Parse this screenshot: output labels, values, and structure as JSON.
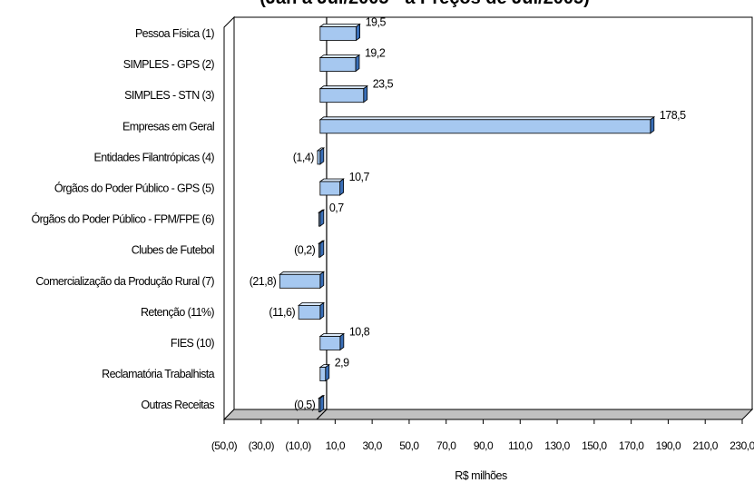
{
  "chart_data": {
    "type": "bar",
    "orientation": "horizontal",
    "title": "(Jan a Jul/2005 - a Preços de Jul/2005)",
    "xlabel": "R$ milhões",
    "ylabel": "",
    "xlim": [
      -50,
      230
    ],
    "x_ticks": [
      -50,
      -30,
      -10,
      10,
      30,
      50,
      70,
      90,
      110,
      130,
      150,
      170,
      190,
      210,
      230
    ],
    "x_tick_labels": [
      "(50,0)",
      "(30,0)",
      "(10,0)",
      "10,0",
      "30,0",
      "50,0",
      "70,0",
      "90,0",
      "110,0",
      "130,0",
      "150,0",
      "170,0",
      "190,0",
      "210,0",
      "230,0"
    ],
    "categories": [
      "Pessoa Física (1)",
      "SIMPLES - GPS (2)",
      "SIMPLES - STN (3)",
      "Empresas em Geral",
      "Entidades Filantrópicas (4)",
      "Órgãos do Poder Público - GPS (5)",
      "Órgãos do Poder Público - FPM/FPE (6)",
      "Clubes de Futebol",
      "Comercialização da Produção Rural (7)",
      "Retenção (11%)",
      "FIES (10)",
      "Reclamatória Trabalhista",
      "Outras Receitas"
    ],
    "values": [
      19.5,
      19.2,
      23.5,
      178.5,
      -1.4,
      10.7,
      0.7,
      -0.2,
      -21.8,
      -11.6,
      10.8,
      2.9,
      -0.5
    ],
    "data_labels": [
      "19,5",
      "19,2",
      "23,5",
      "178,5",
      "(1,4)",
      "10,7",
      "0,7",
      "(0,2)",
      "(21,8)",
      "(11,6)",
      "10,8",
      "2,9",
      "(0,5)"
    ],
    "grid": false,
    "bar_color": "#a6c8f0",
    "bar_top_color": "#dbe9f9",
    "bar_side_color": "#3a6fb8",
    "wall_color": "#ffffff",
    "floor_color": "#c0c0c0"
  }
}
